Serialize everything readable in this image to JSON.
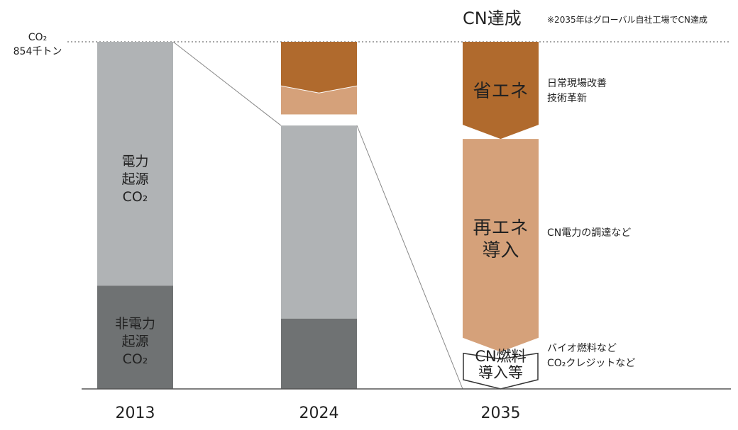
{
  "chart_data": {
    "type": "bar",
    "title": "CN達成",
    "title_note": "※2035年はグローバル自社工場でCN達成",
    "y_label_top": "CO₂",
    "y_label_value": "854千トン",
    "ymax": 854,
    "categories": [
      "2013",
      "2024",
      "2035"
    ],
    "bars": [
      {
        "year": "2013",
        "segments": [
          {
            "label_lines": [
              "非電力",
              "起源",
              "CO₂"
            ],
            "value": 254,
            "color": "#6f7273"
          },
          {
            "label_lines": [
              "電力",
              "起源",
              "CO₂"
            ],
            "value": 600,
            "color": "#b0b3b5"
          }
        ]
      },
      {
        "year": "2024",
        "segments": [
          {
            "value": 173,
            "color": "#6f7273"
          },
          {
            "value": 475,
            "color": "#b0b3b5"
          }
        ],
        "reductions": [
          {
            "value": 125,
            "color": "#b06a2d",
            "shape": "arrow"
          },
          {
            "value": 78,
            "color": "#d5a17a",
            "shape": "chevron"
          }
        ]
      },
      {
        "year": "2035",
        "reductions": [
          {
            "label_lines": [
              "省エネ"
            ],
            "value": 239,
            "color": "#b06a2d",
            "side_lines": [
              "日常現場改善",
              "技術革新"
            ]
          },
          {
            "label_lines": [
              "再エネ",
              "導入"
            ],
            "value": 524,
            "color": "#d5a17a",
            "side_lines": [
              "CN電力の調達など"
            ]
          },
          {
            "label_lines": [
              "CN燃料",
              "導入等"
            ],
            "value": 91,
            "color": "#ffffff",
            "side_lines": [
              "バイオ燃料など",
              "CO₂クレジットなど"
            ]
          }
        ]
      }
    ],
    "colors": {
      "non_power": "#6f7273",
      "power": "#b0b3b5",
      "energy_saving": "#b06a2d",
      "renewable": "#d5a17a",
      "axis": "#555555",
      "dotted": "#888888"
    }
  }
}
